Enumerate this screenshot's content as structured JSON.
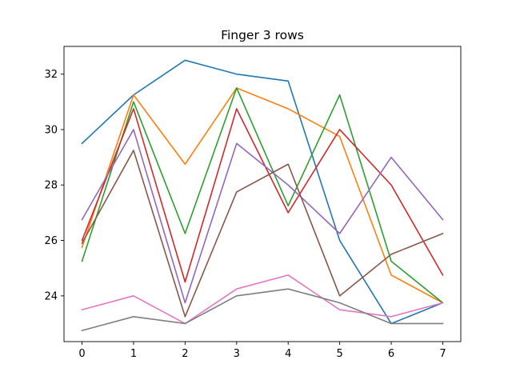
{
  "chart_data": {
    "type": "line",
    "title": "Finger 3 rows",
    "xlabel": "",
    "ylabel": "",
    "x": [
      0,
      1,
      2,
      3,
      4,
      5,
      6,
      7
    ],
    "xlim": [
      -0.35,
      7.35
    ],
    "ylim": [
      22.35,
      33
    ],
    "x_ticks": [
      "0",
      "1",
      "2",
      "3",
      "4",
      "5",
      "6",
      "7"
    ],
    "y_ticks": [
      24,
      26,
      28,
      30,
      32
    ],
    "grid": false,
    "legend": "none",
    "series": [
      {
        "color": "#1f77b4",
        "values": [
          29.5,
          31.25,
          32.5,
          32.0,
          31.75,
          26.0,
          23.0,
          23.75
        ]
      },
      {
        "color": "#ff7f0e",
        "values": [
          25.75,
          31.25,
          28.75,
          31.5,
          30.75,
          29.75,
          24.75,
          23.75
        ]
      },
      {
        "color": "#2ca02c",
        "values": [
          25.25,
          31.0,
          26.25,
          31.5,
          27.25,
          31.25,
          25.25,
          23.75
        ]
      },
      {
        "color": "#d62728",
        "values": [
          26.0,
          30.75,
          24.5,
          30.75,
          27.0,
          30.0,
          28.0,
          24.75
        ]
      },
      {
        "color": "#9467bd",
        "values": [
          26.75,
          30.0,
          23.75,
          29.5,
          28.0,
          26.25,
          29.0,
          26.75
        ]
      },
      {
        "color": "#8c564b",
        "values": [
          25.9,
          29.25,
          23.25,
          27.75,
          28.75,
          24.0,
          25.5,
          26.25
        ]
      },
      {
        "color": "#e377c2",
        "values": [
          23.5,
          24.0,
          23.0,
          24.25,
          24.75,
          23.5,
          23.25,
          23.75
        ]
      },
      {
        "color": "#7f7f7f",
        "values": [
          22.75,
          23.25,
          23.0,
          24.0,
          24.25,
          23.75,
          23.0,
          23.0
        ]
      }
    ]
  }
}
